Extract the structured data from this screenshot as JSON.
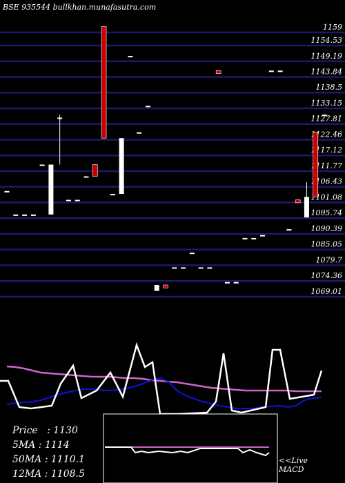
{
  "title": "BSE 935544  bullkhan.munafasutra.com",
  "stats": {
    "price": "Price   : 1130",
    "ma5": "5MA : 1114",
    "ma50": "50MA : 1110.1",
    "ma12": "12MA : 1108.5"
  },
  "macd_label": {
    "line1": "<<Live",
    "line2": "MACD"
  },
  "colors": {
    "background": "#000000",
    "grid": "#1a1a6e",
    "bull": "#ffffff",
    "bear": "#cc0000",
    "ma_slow": "#cc66cc",
    "ma_fast": "#1111dd",
    "oscillator": "#ffffff"
  },
  "chart_data": {
    "type": "candlestick",
    "ylim": [
      1066.5,
      1163
    ],
    "y_ticks": [
      "1159",
      "1154.53",
      "1149.19",
      "1143.84",
      "1138.5",
      "1133.15",
      "1127.81",
      "1122.46",
      "1117.12",
      "1111.77",
      "1106.43",
      "1101.08",
      "1095.74",
      "1090.39",
      "1085.05",
      "1079.7",
      "1074.36",
      "1069.01"
    ],
    "candles": [
      {
        "o": 1105,
        "h": 1105,
        "l": 1105,
        "c": 1105
      },
      {
        "o": 1097,
        "h": 1097,
        "l": 1097,
        "c": 1097
      },
      {
        "o": 1097,
        "h": 1097,
        "l": 1097,
        "c": 1097
      },
      {
        "o": 1097,
        "h": 1097,
        "l": 1097,
        "c": 1097
      },
      {
        "o": 1114,
        "h": 1114,
        "l": 1114,
        "c": 1114
      },
      {
        "o": 1097,
        "h": 1114,
        "l": 1097,
        "c": 1114
      },
      {
        "o": 1130,
        "h": 1131,
        "l": 1114,
        "c": 1130
      },
      {
        "o": 1102,
        "h": 1102,
        "l": 1102,
        "c": 1102
      },
      {
        "o": 1102,
        "h": 1102,
        "l": 1102,
        "c": 1102
      },
      {
        "o": 1110,
        "h": 1110,
        "l": 1110,
        "c": 1110
      },
      {
        "o": 1114,
        "h": 1114,
        "l": 1110,
        "c": 1110
      },
      {
        "o": 1161,
        "h": 1161,
        "l": 1123,
        "c": 1123
      },
      {
        "o": 1104,
        "h": 1104,
        "l": 1104,
        "c": 1104
      },
      {
        "o": 1104,
        "h": 1123,
        "l": 1104,
        "c": 1123
      },
      {
        "o": 1151,
        "h": 1151,
        "l": 1151,
        "c": 1151
      },
      {
        "o": 1125,
        "h": 1125,
        "l": 1125,
        "c": 1125
      },
      {
        "o": 1134,
        "h": 1134,
        "l": 1134,
        "c": 1134
      },
      {
        "o": 1071,
        "h": 1073,
        "l": 1071,
        "c": 1073
      },
      {
        "o": 1073,
        "h": 1073,
        "l": 1072,
        "c": 1072
      },
      {
        "o": 1079,
        "h": 1079,
        "l": 1079,
        "c": 1079
      },
      {
        "o": 1079,
        "h": 1079,
        "l": 1079,
        "c": 1079
      },
      {
        "o": 1084,
        "h": 1084,
        "l": 1084,
        "c": 1084
      },
      {
        "o": 1079,
        "h": 1079,
        "l": 1079,
        "c": 1079
      },
      {
        "o": 1079,
        "h": 1079,
        "l": 1079,
        "c": 1079
      },
      {
        "o": 1146,
        "h": 1146,
        "l": 1145,
        "c": 1145
      },
      {
        "o": 1074,
        "h": 1074,
        "l": 1074,
        "c": 1074
      },
      {
        "o": 1074,
        "h": 1074,
        "l": 1074,
        "c": 1074
      },
      {
        "o": 1089,
        "h": 1089,
        "l": 1089,
        "c": 1089
      },
      {
        "o": 1089,
        "h": 1089,
        "l": 1089,
        "c": 1089
      },
      {
        "o": 1090,
        "h": 1090,
        "l": 1090,
        "c": 1090
      },
      {
        "o": 1146,
        "h": 1146,
        "l": 1146,
        "c": 1146
      },
      {
        "o": 1146,
        "h": 1146,
        "l": 1146,
        "c": 1146
      },
      {
        "o": 1092,
        "h": 1092,
        "l": 1092,
        "c": 1092
      },
      {
        "o": 1102,
        "h": 1102,
        "l": 1101,
        "c": 1101
      },
      {
        "o": 1096,
        "h": 1108,
        "l": 1096,
        "c": 1103
      },
      {
        "o": 1125,
        "h": 1125,
        "l": 1103,
        "c": 1103
      },
      {
        "o": 1131,
        "h": 1131,
        "l": 1131,
        "c": 1131
      }
    ]
  }
}
